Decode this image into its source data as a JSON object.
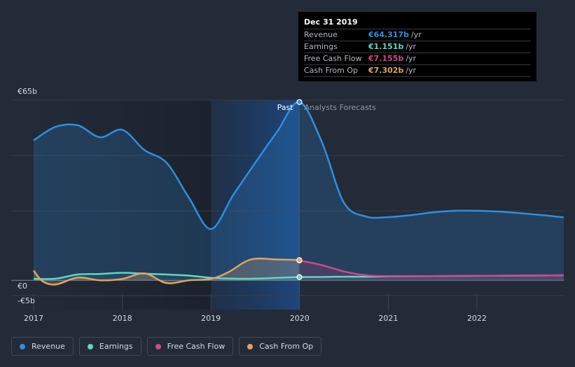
{
  "chart_data": {
    "type": "area",
    "title": "",
    "xlabel": "",
    "ylabel": "",
    "currency": "€",
    "y_top_label": "€65b",
    "y_zero_label": "€0",
    "y_bottom_label": "-€5b",
    "ylim": [
      -5,
      65
    ],
    "xlim": [
      2017,
      2022.98
    ],
    "x_ticks": [
      2017,
      2018,
      2019,
      2020,
      2021,
      2022
    ],
    "x_tick_labels": [
      "2017",
      "2018",
      "2019",
      "2020",
      "2021",
      "2022"
    ],
    "y_gridlines": [
      65,
      45,
      25,
      0
    ],
    "past_label": "Past",
    "forecast_label": "Analysts Forecasts",
    "divider_x": 2019.998,
    "highlight_start": 2019.0,
    "series": [
      {
        "name": "Revenue",
        "color": "#2e8fe0",
        "x": [
          2017.0,
          2017.25,
          2017.5,
          2017.75,
          2018.0,
          2018.25,
          2018.5,
          2018.75,
          2019.0,
          2019.25,
          2019.5,
          2019.75,
          2019.998,
          2020.25,
          2020.5,
          2020.75,
          2021.0,
          2021.25,
          2021.5,
          2021.75,
          2022.0,
          2022.25,
          2022.5,
          2022.75,
          2022.98
        ],
        "values": [
          50.5,
          55.4,
          55.9,
          51.6,
          54.3,
          47.0,
          42.4,
          29.9,
          18.5,
          30.7,
          42.4,
          53.8,
          64.317,
          50.0,
          28.0,
          23.0,
          22.8,
          23.5,
          24.5,
          25.1,
          25.1,
          24.8,
          24.2,
          23.5,
          22.7
        ]
      },
      {
        "name": "Earnings",
        "color": "#5fd6c6",
        "x": [
          2017.0,
          2017.25,
          2017.5,
          2017.75,
          2018.0,
          2018.25,
          2018.5,
          2018.75,
          2019.0,
          2019.25,
          2019.5,
          2019.75,
          2019.998,
          2020.25,
          2020.5,
          2020.75,
          2021.0,
          2021.5,
          2022.0,
          2022.5,
          2022.98
        ],
        "values": [
          0.5,
          0.6,
          2.1,
          2.3,
          2.7,
          2.4,
          2.1,
          1.7,
          0.9,
          0.6,
          0.6,
          0.9,
          1.151,
          1.2,
          1.3,
          1.3,
          1.4,
          1.5,
          1.6,
          1.7,
          1.8
        ]
      },
      {
        "name": "Free Cash Flow",
        "color": "#d0498b",
        "x": [
          2019.998,
          2020.25,
          2020.5,
          2020.75,
          2021.0,
          2021.5,
          2022.0,
          2022.5,
          2022.98
        ],
        "values": [
          7.155,
          5.5,
          3.2,
          1.8,
          1.5,
          1.5,
          1.6,
          1.7,
          1.8
        ]
      },
      {
        "name": "Cash From Op",
        "color": "#e0a460",
        "x": [
          2017.0,
          2017.1,
          2017.25,
          2017.5,
          2017.75,
          2018.0,
          2018.25,
          2018.5,
          2018.75,
          2019.0,
          2019.2,
          2019.45,
          2019.75,
          2019.998
        ],
        "values": [
          3.5,
          -0.3,
          -1.5,
          1.0,
          0.0,
          0.5,
          2.5,
          -1.0,
          0.0,
          0.5,
          3.0,
          7.5,
          7.5,
          7.302
        ]
      }
    ]
  },
  "tooltip": {
    "date": "Dec 31 2019",
    "rows": [
      {
        "name": "Revenue",
        "value": "€64.317b",
        "unit": "/yr",
        "color": "#2e8fe0"
      },
      {
        "name": "Earnings",
        "value": "€1.151b",
        "unit": "/yr",
        "color": "#5fd6c6"
      },
      {
        "name": "Free Cash Flow",
        "value": "€7.155b",
        "unit": "/yr",
        "color": "#d0498b"
      },
      {
        "name": "Cash From Op",
        "value": "€7.302b",
        "unit": "/yr",
        "color": "#e0a460"
      }
    ]
  },
  "legend": [
    {
      "label": "Revenue",
      "color": "#2e8fe0"
    },
    {
      "label": "Earnings",
      "color": "#5fd6c6"
    },
    {
      "label": "Free Cash Flow",
      "color": "#d0498b"
    },
    {
      "label": "Cash From Op",
      "color": "#e0a460"
    }
  ]
}
